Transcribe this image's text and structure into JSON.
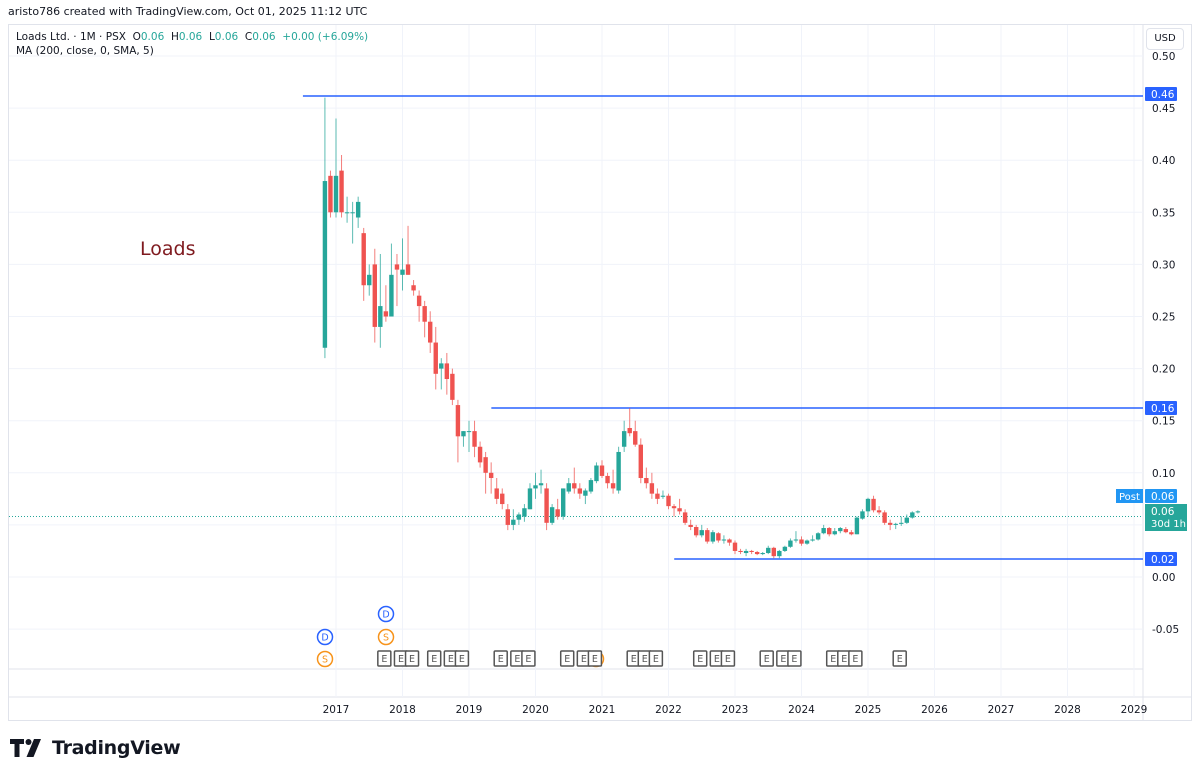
{
  "caption": "aristo786 created with TradingView.com, Oct 01, 2025 11:12 UTC",
  "legend": {
    "symbol": "Loads Ltd. · 1M · PSX",
    "open_label": "O",
    "open": "0.06",
    "high_label": "H",
    "high": "0.06",
    "low_label": "L",
    "low": "0.06",
    "close_label": "C",
    "close": "0.06",
    "change": "+0.00 (+6.09%)",
    "indicator": "MA (200, close, 0, SMA, 5)"
  },
  "currency_button": "USD",
  "annotation_text": "Loads",
  "brand": "TradingView",
  "price_labels": {
    "line_high": "0.46",
    "line_mid": "0.16",
    "line_low": "0.02",
    "post_tag": "Post",
    "post_value": "0.06",
    "last_price": "0.06",
    "countdown": "30d 1h"
  },
  "colors": {
    "up": "#26a69a",
    "down": "#ef5350",
    "hline": "#2962ff",
    "dividend": "#2962ff",
    "split": "#f7931a",
    "earnings": "#555555",
    "annotation": "#7f1a1f"
  },
  "chart_data": {
    "type": "candlestick",
    "title": "Loads Ltd. · 1M · PSX",
    "xlabel": "",
    "ylabel": "USD",
    "ylim": [
      -0.07,
      0.51
    ],
    "y_ticks": [
      "0.50",
      "0.45",
      "0.40",
      "0.35",
      "0.30",
      "0.25",
      "0.20",
      "0.15",
      "0.10",
      "0.05",
      "0.00",
      "-0.05"
    ],
    "x_ticks": [
      "2017",
      "2018",
      "2019",
      "2020",
      "2021",
      "2022",
      "2023",
      "2024",
      "2025",
      "2026",
      "2027",
      "2028",
      "2029"
    ],
    "horizontal_lines": [
      {
        "price": 0.46,
        "start": "2016-11"
      },
      {
        "price": 0.16,
        "start": "2019-09"
      },
      {
        "price": 0.02,
        "start": "2022-06"
      }
    ],
    "last_price": 0.06,
    "events": {
      "dividends": [
        "2016-11",
        "2017-09"
      ],
      "splits": [
        "2016-11",
        "2017-09",
        "2020-12"
      ],
      "earnings": [
        "2017-09",
        "2017-12",
        "2018-02",
        "2018-06",
        "2018-09",
        "2018-11",
        "2019-06",
        "2019-09",
        "2019-11",
        "2020-06",
        "2020-09",
        "2020-11",
        "2021-06",
        "2021-08",
        "2021-10",
        "2022-06",
        "2022-09",
        "2022-11",
        "2023-06",
        "2023-09",
        "2023-11",
        "2024-06",
        "2024-08",
        "2024-10",
        "2025-06"
      ]
    },
    "candles_note": "Monthly OHLC approximated from chart pixels, Nov 2016 - Oct 2025",
    "candles": [
      {
        "t": "2016-11",
        "o": 0.22,
        "h": 0.46,
        "l": 0.21,
        "c": 0.38
      },
      {
        "t": "2016-12",
        "o": 0.385,
        "h": 0.39,
        "l": 0.345,
        "c": 0.35
      },
      {
        "t": "2017-01",
        "o": 0.35,
        "h": 0.44,
        "l": 0.345,
        "c": 0.385
      },
      {
        "t": "2017-02",
        "o": 0.39,
        "h": 0.405,
        "l": 0.345,
        "c": 0.35
      },
      {
        "t": "2017-03",
        "o": 0.35,
        "h": 0.365,
        "l": 0.34,
        "c": 0.35
      },
      {
        "t": "2017-04",
        "o": 0.35,
        "h": 0.36,
        "l": 0.32,
        "c": 0.35
      },
      {
        "t": "2017-05",
        "o": 0.345,
        "h": 0.365,
        "l": 0.335,
        "c": 0.36
      },
      {
        "t": "2017-06",
        "o": 0.33,
        "h": 0.335,
        "l": 0.265,
        "c": 0.28
      },
      {
        "t": "2017-07",
        "o": 0.28,
        "h": 0.3,
        "l": 0.27,
        "c": 0.29
      },
      {
        "t": "2017-08",
        "o": 0.3,
        "h": 0.315,
        "l": 0.225,
        "c": 0.24
      },
      {
        "t": "2017-09",
        "o": 0.24,
        "h": 0.31,
        "l": 0.22,
        "c": 0.26
      },
      {
        "t": "2017-10",
        "o": 0.255,
        "h": 0.28,
        "l": 0.245,
        "c": 0.25
      },
      {
        "t": "2017-11",
        "o": 0.25,
        "h": 0.32,
        "l": 0.25,
        "c": 0.29
      },
      {
        "t": "2017-12",
        "o": 0.3,
        "h": 0.31,
        "l": 0.26,
        "c": 0.295
      },
      {
        "t": "2018-01",
        "o": 0.29,
        "h": 0.325,
        "l": 0.275,
        "c": 0.295
      },
      {
        "t": "2018-02",
        "o": 0.3,
        "h": 0.337,
        "l": 0.29,
        "c": 0.29
      },
      {
        "t": "2018-03",
        "o": 0.28,
        "h": 0.285,
        "l": 0.27,
        "c": 0.275
      },
      {
        "t": "2018-04",
        "o": 0.27,
        "h": 0.275,
        "l": 0.245,
        "c": 0.26
      },
      {
        "t": "2018-05",
        "o": 0.26,
        "h": 0.265,
        "l": 0.23,
        "c": 0.245
      },
      {
        "t": "2018-06",
        "o": 0.245,
        "h": 0.255,
        "l": 0.215,
        "c": 0.225
      },
      {
        "t": "2018-07",
        "o": 0.225,
        "h": 0.24,
        "l": 0.18,
        "c": 0.195
      },
      {
        "t": "2018-08",
        "o": 0.2,
        "h": 0.21,
        "l": 0.18,
        "c": 0.205
      },
      {
        "t": "2018-09",
        "o": 0.205,
        "h": 0.215,
        "l": 0.175,
        "c": 0.19
      },
      {
        "t": "2018-10",
        "o": 0.195,
        "h": 0.2,
        "l": 0.165,
        "c": 0.17
      },
      {
        "t": "2018-11",
        "o": 0.165,
        "h": 0.17,
        "l": 0.11,
        "c": 0.135
      },
      {
        "t": "2018-12",
        "o": 0.135,
        "h": 0.14,
        "l": 0.125,
        "c": 0.14
      },
      {
        "t": "2019-01",
        "o": 0.14,
        "h": 0.15,
        "l": 0.12,
        "c": 0.14
      },
      {
        "t": "2019-02",
        "o": 0.14,
        "h": 0.15,
        "l": 0.115,
        "c": 0.125
      },
      {
        "t": "2019-03",
        "o": 0.125,
        "h": 0.13,
        "l": 0.105,
        "c": 0.11
      },
      {
        "t": "2019-04",
        "o": 0.115,
        "h": 0.12,
        "l": 0.08,
        "c": 0.1
      },
      {
        "t": "2019-05",
        "o": 0.1,
        "h": 0.11,
        "l": 0.08,
        "c": 0.095
      },
      {
        "t": "2019-06",
        "o": 0.085,
        "h": 0.095,
        "l": 0.07,
        "c": 0.075
      },
      {
        "t": "2019-07",
        "o": 0.08,
        "h": 0.085,
        "l": 0.065,
        "c": 0.07
      },
      {
        "t": "2019-08",
        "o": 0.065,
        "h": 0.07,
        "l": 0.045,
        "c": 0.05
      },
      {
        "t": "2019-09",
        "o": 0.05,
        "h": 0.065,
        "l": 0.045,
        "c": 0.055
      },
      {
        "t": "2019-10",
        "o": 0.055,
        "h": 0.062,
        "l": 0.05,
        "c": 0.06
      },
      {
        "t": "2019-11",
        "o": 0.058,
        "h": 0.07,
        "l": 0.053,
        "c": 0.066
      },
      {
        "t": "2019-12",
        "o": 0.065,
        "h": 0.09,
        "l": 0.065,
        "c": 0.085
      },
      {
        "t": "2020-01",
        "o": 0.085,
        "h": 0.1,
        "l": 0.075,
        "c": 0.088
      },
      {
        "t": "2020-02",
        "o": 0.088,
        "h": 0.103,
        "l": 0.08,
        "c": 0.09
      },
      {
        "t": "2020-03",
        "o": 0.085,
        "h": 0.09,
        "l": 0.045,
        "c": 0.052
      },
      {
        "t": "2020-04",
        "o": 0.052,
        "h": 0.07,
        "l": 0.05,
        "c": 0.067
      },
      {
        "t": "2020-05",
        "o": 0.065,
        "h": 0.075,
        "l": 0.055,
        "c": 0.058
      },
      {
        "t": "2020-06",
        "o": 0.058,
        "h": 0.085,
        "l": 0.055,
        "c": 0.085
      },
      {
        "t": "2020-07",
        "o": 0.082,
        "h": 0.095,
        "l": 0.08,
        "c": 0.09
      },
      {
        "t": "2020-08",
        "o": 0.09,
        "h": 0.105,
        "l": 0.08,
        "c": 0.085
      },
      {
        "t": "2020-09",
        "o": 0.085,
        "h": 0.09,
        "l": 0.075,
        "c": 0.08
      },
      {
        "t": "2020-10",
        "o": 0.078,
        "h": 0.085,
        "l": 0.07,
        "c": 0.083
      },
      {
        "t": "2020-11",
        "o": 0.082,
        "h": 0.095,
        "l": 0.08,
        "c": 0.093
      },
      {
        "t": "2020-12",
        "o": 0.092,
        "h": 0.11,
        "l": 0.09,
        "c": 0.107
      },
      {
        "t": "2021-01",
        "o": 0.107,
        "h": 0.112,
        "l": 0.095,
        "c": 0.097
      },
      {
        "t": "2021-02",
        "o": 0.097,
        "h": 0.1,
        "l": 0.085,
        "c": 0.09
      },
      {
        "t": "2021-03",
        "o": 0.09,
        "h": 0.103,
        "l": 0.08,
        "c": 0.085
      },
      {
        "t": "2021-04",
        "o": 0.083,
        "h": 0.125,
        "l": 0.08,
        "c": 0.12
      },
      {
        "t": "2021-05",
        "o": 0.125,
        "h": 0.15,
        "l": 0.12,
        "c": 0.14
      },
      {
        "t": "2021-06",
        "o": 0.143,
        "h": 0.162,
        "l": 0.135,
        "c": 0.138
      },
      {
        "t": "2021-07",
        "o": 0.14,
        "h": 0.15,
        "l": 0.125,
        "c": 0.127
      },
      {
        "t": "2021-08",
        "o": 0.127,
        "h": 0.133,
        "l": 0.09,
        "c": 0.095
      },
      {
        "t": "2021-09",
        "o": 0.095,
        "h": 0.105,
        "l": 0.085,
        "c": 0.09
      },
      {
        "t": "2021-10",
        "o": 0.09,
        "h": 0.1,
        "l": 0.075,
        "c": 0.08
      },
      {
        "t": "2021-11",
        "o": 0.08,
        "h": 0.085,
        "l": 0.07,
        "c": 0.075
      },
      {
        "t": "2021-12",
        "o": 0.077,
        "h": 0.083,
        "l": 0.075,
        "c": 0.078
      },
      {
        "t": "2022-01",
        "o": 0.078,
        "h": 0.08,
        "l": 0.065,
        "c": 0.068
      },
      {
        "t": "2022-02",
        "o": 0.068,
        "h": 0.07,
        "l": 0.058,
        "c": 0.066
      },
      {
        "t": "2022-03",
        "o": 0.066,
        "h": 0.075,
        "l": 0.06,
        "c": 0.063
      },
      {
        "t": "2022-04",
        "o": 0.062,
        "h": 0.065,
        "l": 0.05,
        "c": 0.052
      },
      {
        "t": "2022-05",
        "o": 0.05,
        "h": 0.055,
        "l": 0.045,
        "c": 0.048
      },
      {
        "t": "2022-06",
        "o": 0.048,
        "h": 0.05,
        "l": 0.038,
        "c": 0.04
      },
      {
        "t": "2022-07",
        "o": 0.04,
        "h": 0.05,
        "l": 0.038,
        "c": 0.045
      },
      {
        "t": "2022-08",
        "o": 0.045,
        "h": 0.047,
        "l": 0.032,
        "c": 0.034
      },
      {
        "t": "2022-09",
        "o": 0.034,
        "h": 0.045,
        "l": 0.032,
        "c": 0.043
      },
      {
        "t": "2022-10",
        "o": 0.042,
        "h": 0.043,
        "l": 0.033,
        "c": 0.035
      },
      {
        "t": "2022-11",
        "o": 0.035,
        "h": 0.04,
        "l": 0.032,
        "c": 0.036
      },
      {
        "t": "2022-12",
        "o": 0.036,
        "h": 0.037,
        "l": 0.03,
        "c": 0.033
      },
      {
        "t": "2023-01",
        "o": 0.033,
        "h": 0.035,
        "l": 0.022,
        "c": 0.025
      },
      {
        "t": "2023-02",
        "o": 0.025,
        "h": 0.027,
        "l": 0.022,
        "c": 0.024
      },
      {
        "t": "2023-03",
        "o": 0.023,
        "h": 0.027,
        "l": 0.02,
        "c": 0.025
      },
      {
        "t": "2023-04",
        "o": 0.025,
        "h": 0.026,
        "l": 0.022,
        "c": 0.024
      },
      {
        "t": "2023-05",
        "o": 0.024,
        "h": 0.025,
        "l": 0.021,
        "c": 0.022
      },
      {
        "t": "2023-06",
        "o": 0.022,
        "h": 0.024,
        "l": 0.021,
        "c": 0.023
      },
      {
        "t": "2023-07",
        "o": 0.023,
        "h": 0.03,
        "l": 0.022,
        "c": 0.028
      },
      {
        "t": "2023-08",
        "o": 0.028,
        "h": 0.029,
        "l": 0.018,
        "c": 0.02
      },
      {
        "t": "2023-09",
        "o": 0.02,
        "h": 0.026,
        "l": 0.018,
        "c": 0.025
      },
      {
        "t": "2023-10",
        "o": 0.025,
        "h": 0.03,
        "l": 0.024,
        "c": 0.029
      },
      {
        "t": "2023-11",
        "o": 0.029,
        "h": 0.037,
        "l": 0.028,
        "c": 0.035
      },
      {
        "t": "2023-12",
        "o": 0.035,
        "h": 0.044,
        "l": 0.033,
        "c": 0.036
      },
      {
        "t": "2024-01",
        "o": 0.036,
        "h": 0.039,
        "l": 0.03,
        "c": 0.032
      },
      {
        "t": "2024-02",
        "o": 0.032,
        "h": 0.036,
        "l": 0.031,
        "c": 0.035
      },
      {
        "t": "2024-03",
        "o": 0.035,
        "h": 0.04,
        "l": 0.034,
        "c": 0.036
      },
      {
        "t": "2024-04",
        "o": 0.036,
        "h": 0.043,
        "l": 0.035,
        "c": 0.042
      },
      {
        "t": "2024-05",
        "o": 0.042,
        "h": 0.05,
        "l": 0.041,
        "c": 0.047
      },
      {
        "t": "2024-06",
        "o": 0.047,
        "h": 0.048,
        "l": 0.039,
        "c": 0.041
      },
      {
        "t": "2024-07",
        "o": 0.041,
        "h": 0.047,
        "l": 0.04,
        "c": 0.044
      },
      {
        "t": "2024-08",
        "o": 0.044,
        "h": 0.048,
        "l": 0.042,
        "c": 0.047
      },
      {
        "t": "2024-09",
        "o": 0.046,
        "h": 0.048,
        "l": 0.042,
        "c": 0.043
      },
      {
        "t": "2024-10",
        "o": 0.043,
        "h": 0.045,
        "l": 0.04,
        "c": 0.041
      },
      {
        "t": "2024-11",
        "o": 0.041,
        "h": 0.058,
        "l": 0.041,
        "c": 0.057
      },
      {
        "t": "2024-12",
        "o": 0.056,
        "h": 0.065,
        "l": 0.055,
        "c": 0.063
      },
      {
        "t": "2025-01",
        "o": 0.063,
        "h": 0.076,
        "l": 0.058,
        "c": 0.075
      },
      {
        "t": "2025-02",
        "o": 0.075,
        "h": 0.078,
        "l": 0.062,
        "c": 0.064
      },
      {
        "t": "2025-03",
        "o": 0.064,
        "h": 0.068,
        "l": 0.06,
        "c": 0.062
      },
      {
        "t": "2025-04",
        "o": 0.062,
        "h": 0.064,
        "l": 0.05,
        "c": 0.052
      },
      {
        "t": "2025-05",
        "o": 0.052,
        "h": 0.055,
        "l": 0.045,
        "c": 0.05
      },
      {
        "t": "2025-06",
        "o": 0.05,
        "h": 0.052,
        "l": 0.046,
        "c": 0.051
      },
      {
        "t": "2025-07",
        "o": 0.051,
        "h": 0.058,
        "l": 0.049,
        "c": 0.052
      },
      {
        "t": "2025-08",
        "o": 0.052,
        "h": 0.06,
        "l": 0.051,
        "c": 0.057
      },
      {
        "t": "2025-09",
        "o": 0.057,
        "h": 0.063,
        "l": 0.056,
        "c": 0.062
      },
      {
        "t": "2025-10",
        "o": 0.062,
        "h": 0.064,
        "l": 0.061,
        "c": 0.063
      }
    ]
  }
}
